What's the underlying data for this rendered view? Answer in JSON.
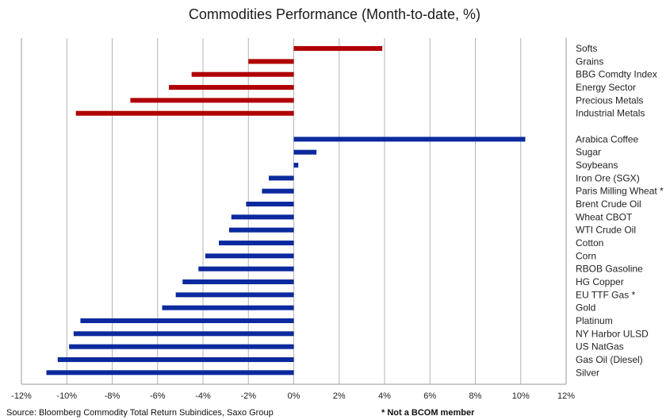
{
  "chart_data": {
    "type": "bar",
    "orientation": "horizontal",
    "title": "Commodities Performance (Month-to-date, %)",
    "xlabel": "",
    "ylabel": "",
    "xlim": [
      -12,
      12
    ],
    "x_ticks": [
      "-12%",
      "-10%",
      "-8%",
      "-6%",
      "-4%",
      "-2%",
      "0%",
      "2%",
      "4%",
      "6%",
      "8%",
      "10%",
      "12%"
    ],
    "grid": "vertical",
    "colors": {
      "groups": "#b00000",
      "individual": "#0c2a9e"
    },
    "groups": [
      {
        "label": "Softs",
        "value": 3.9
      },
      {
        "label": "Grains",
        "value": -2.0
      },
      {
        "label": "BBG Comdty Index",
        "value": -4.5
      },
      {
        "label": "Energy Sector",
        "value": -5.5
      },
      {
        "label": "Precious Metals",
        "value": -7.2
      },
      {
        "label": "Industrial Metals",
        "value": -9.6
      }
    ],
    "individual": [
      {
        "label": "Arabica Coffee",
        "value": 10.2
      },
      {
        "label": "Sugar",
        "value": 1.0
      },
      {
        "label": "Soybeans",
        "value": 0.2
      },
      {
        "label": "Iron Ore (SGX)",
        "value": -1.1
      },
      {
        "label": "Paris Milling Wheat *",
        "value": -1.4
      },
      {
        "label": "Brent Crude Oil",
        "value": -2.1
      },
      {
        "label": "Wheat CBOT",
        "value": -2.75
      },
      {
        "label": "WTI Crude Oil",
        "value": -2.85
      },
      {
        "label": "Cotton",
        "value": -3.3
      },
      {
        "label": "Corn",
        "value": -3.9
      },
      {
        "label": "RBOB Gasoline",
        "value": -4.2
      },
      {
        "label": "HG Copper",
        "value": -4.9
      },
      {
        "label": "EU TTF Gas *",
        "value": -5.2
      },
      {
        "label": "Gold",
        "value": -5.8
      },
      {
        "label": "Platinum",
        "value": -9.4
      },
      {
        "label": "NY Harbor ULSD",
        "value": -9.7
      },
      {
        "label": "US NatGas",
        "value": -9.9
      },
      {
        "label": "Gas Oil (Diesel)",
        "value": -10.4
      },
      {
        "label": "Silver",
        "value": -10.9
      }
    ]
  },
  "footer": {
    "source": "Source: Bloomberg Commodity Total Return Subindices, Saxo Group",
    "note": "* Not a BCOM member"
  }
}
